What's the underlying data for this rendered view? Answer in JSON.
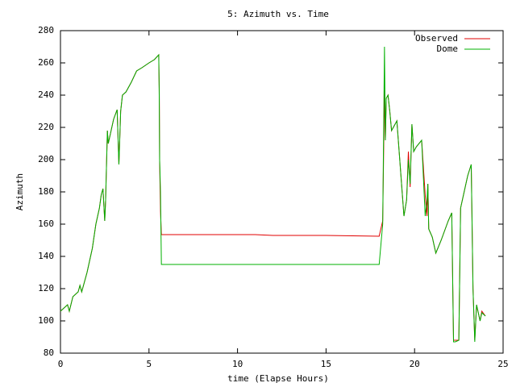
{
  "chart_data": {
    "type": "line",
    "title": "5: Azimuth vs. Time",
    "x_label": "time (Elapse Hours)",
    "y_label": "Azimuth",
    "xlim": [
      0,
      25
    ],
    "xticks": [
      0,
      5,
      10,
      15,
      20,
      25
    ],
    "ylim": [
      80,
      280
    ],
    "yticks": [
      80,
      100,
      120,
      140,
      160,
      180,
      200,
      220,
      240,
      260,
      280
    ],
    "grid": false,
    "legend": "top-right",
    "x": [
      0,
      0.2,
      0.4,
      0.5,
      0.7,
      1.0,
      1.1,
      1.2,
      1.5,
      1.6,
      1.7,
      1.8,
      2.0,
      2.2,
      2.3,
      2.4,
      2.5,
      2.55,
      2.65,
      2.7,
      2.8,
      3.0,
      3.2,
      3.3,
      3.4,
      3.5,
      3.7,
      4.0,
      4.3,
      4.6,
      5.0,
      5.3,
      5.55,
      5.58,
      5.6,
      5.65,
      5.7,
      8,
      11,
      12,
      15,
      18,
      18.2,
      18.3,
      18.35,
      18.4,
      18.5,
      18.6,
      18.7,
      18.8,
      19.0,
      19.4,
      19.55,
      19.65,
      19.75,
      19.85,
      19.95,
      20.1,
      20.4,
      20.6,
      20.7,
      20.75,
      20.8,
      21.0,
      21.2,
      21.5,
      21.9,
      22.1,
      22.2,
      22.3,
      22.5,
      22.6,
      22.8,
      23.0,
      23.2,
      23.3,
      23.4,
      23.5,
      23.7,
      23.8,
      24.0
    ],
    "series": [
      {
        "name": "Observed",
        "color": "#e00000",
        "values": [
          106,
          108,
          110,
          106,
          115,
          118,
          122,
          118,
          130,
          135,
          140,
          145,
          160,
          170,
          178,
          182,
          162,
          175,
          218,
          210,
          215,
          225,
          231,
          197,
          230,
          240,
          242,
          248,
          255,
          257,
          260,
          262,
          265,
          243,
          200,
          168,
          153.5,
          153.5,
          153.5,
          153,
          153,
          152.5,
          162,
          243,
          212,
          238,
          240,
          230,
          218,
          220,
          224,
          165,
          175,
          205,
          183,
          222,
          205,
          208,
          212,
          178,
          165,
          185,
          157,
          152,
          142,
          150,
          162,
          167,
          88,
          88,
          88,
          170,
          180,
          190,
          197,
          120,
          88,
          110,
          100,
          106,
          103
        ]
      },
      {
        "name": "Dome",
        "color": "#00b000",
        "values": [
          106,
          108,
          110,
          106,
          115,
          118,
          122,
          118,
          130,
          135,
          140,
          145,
          160,
          170,
          178,
          182,
          162,
          175,
          218,
          210,
          215,
          225,
          231,
          197,
          230,
          240,
          242,
          248,
          255,
          257,
          260,
          262,
          265,
          238,
          200,
          180,
          135,
          135,
          135,
          135,
          135,
          135,
          160,
          270,
          212,
          238,
          240,
          230,
          218,
          220,
          224,
          165,
          175,
          200,
          185,
          222,
          205,
          208,
          212,
          165,
          175,
          185,
          157,
          152,
          142,
          150,
          162,
          167,
          87,
          87,
          88,
          170,
          180,
          190,
          197,
          120,
          87,
          110,
          100,
          105,
          103
        ]
      }
    ]
  }
}
